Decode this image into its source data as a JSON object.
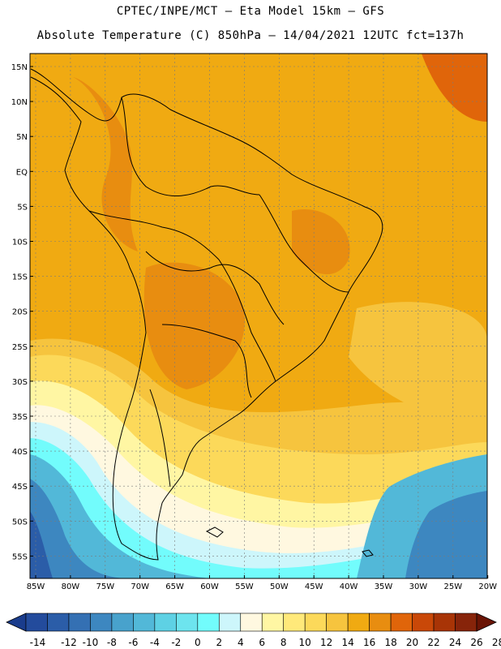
{
  "header": {
    "line1": "CPTEC/INPE/MCT —  Eta Model 15km — GFS",
    "line2": "Absolute Temperature (C) 850hPa — 14/04/2021 12UTC fct=137h"
  },
  "map": {
    "lat_labels": [
      "15N",
      "10N",
      "5N",
      "EQ",
      "5S",
      "10S",
      "15S",
      "20S",
      "25S",
      "30S",
      "35S",
      "40S",
      "45S",
      "50S",
      "55S"
    ],
    "lon_labels": [
      "85W",
      "80W",
      "75W",
      "70W",
      "65W",
      "60W",
      "55W",
      "50W",
      "45W",
      "40W",
      "35W",
      "30W",
      "25W",
      "20W"
    ],
    "lat_range": [
      -58,
      16
    ],
    "lon_range": [
      -86,
      -20
    ]
  },
  "colorbar": {
    "labels": [
      "-14",
      "-12",
      "-10",
      "-8",
      "-6",
      "-4",
      "-2",
      "0",
      "2",
      "4",
      "6",
      "8",
      "10",
      "12",
      "14",
      "16",
      "18",
      "20",
      "22",
      "24",
      "26",
      "28"
    ],
    "colors": [
      "#1a3c8c",
      "#234b9c",
      "#2b5da8",
      "#3470b3",
      "#3d87c0",
      "#48a2cc",
      "#52b8d8",
      "#5ed1e4",
      "#6de4ee",
      "#72fcfc",
      "#cdf6fb",
      "#fff8e0",
      "#fff6a3",
      "#ffe97a",
      "#fcd95a",
      "#f6c43e",
      "#f0aa12",
      "#e88d10",
      "#e0650a",
      "#c94808",
      "#a83406",
      "#87240a",
      "#6a1405"
    ]
  },
  "colors": {
    "warm": "#f0aa12",
    "hot": "#e88d10",
    "hotter": "#e0650a",
    "warmlight": "#f6c43e",
    "pale": "#fcd95a",
    "cold": "#3470b3"
  }
}
